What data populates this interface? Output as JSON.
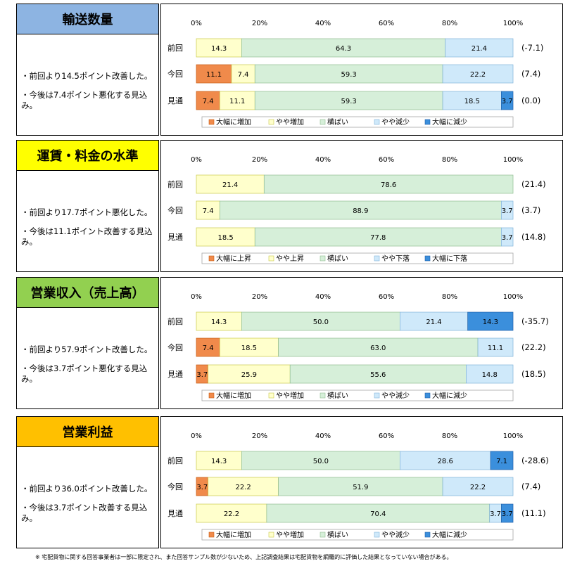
{
  "colors": {
    "大幅増": "#f08a4b",
    "やや増": "#ffffcc",
    "横ばい": "#d6efd9",
    "やや減": "#cfe9fa",
    "大幅減": "#3b8fdc"
  },
  "panels": [
    {
      "title": "輸送数量",
      "title_bg": "#8db4e2",
      "notes": [
        "・前回より14.5ポイント改善した。",
        "・今後は7.4ポイント悪化する見込み。"
      ],
      "legend": [
        "大幅に増加",
        "やや増加",
        "横ばい",
        "やや減少",
        "大幅に減少"
      ]
    },
    {
      "title": "運賃・料金の水準",
      "title_bg": "#ffff00",
      "notes": [
        "・前回より17.7ポイント悪化した。",
        "・今後は11.1ポイント改善する見込み。"
      ],
      "legend": [
        "大幅に上昇",
        "やや上昇",
        "横ばい",
        "やや下落",
        "大幅に下落"
      ]
    },
    {
      "title": "営業収入（売上高）",
      "title_bg": "#92d050",
      "notes": [
        "・前回より57.9ポイント改善した。",
        "・今後は3.7ポイント悪化する見込み。"
      ],
      "legend": [
        "大幅に増加",
        "やや増加",
        "横ばい",
        "やや減少",
        "大幅に減少"
      ]
    },
    {
      "title": "営業利益",
      "title_bg": "#ffc000",
      "notes": [
        "・前回より36.0ポイント改善した。",
        "・今後は3.7ポイント改善する見込み。"
      ],
      "legend": [
        "大幅に増加",
        "やや増加",
        "横ばい",
        "やや減少",
        "大幅に減少"
      ]
    }
  ],
  "chart_data": [
    {
      "type": "bar",
      "stacked": true,
      "orientation": "horizontal",
      "categories": [
        "前回",
        "今回",
        "見通"
      ],
      "x_ticks": [
        "0%",
        "20%",
        "40%",
        "60%",
        "80%",
        "100%"
      ],
      "xlim": [
        0,
        100
      ],
      "series": [
        {
          "name": "大幅に増加",
          "values": [
            0,
            11.1,
            7.4
          ]
        },
        {
          "name": "やや増加",
          "values": [
            14.3,
            7.4,
            11.1
          ]
        },
        {
          "name": "横ばい",
          "values": [
            64.3,
            59.3,
            59.3
          ]
        },
        {
          "name": "やや減少",
          "values": [
            21.4,
            22.2,
            18.5
          ]
        },
        {
          "name": "大幅に減少",
          "values": [
            0,
            0,
            3.7
          ]
        }
      ],
      "annotations": [
        "(-7.1)",
        "(7.4)",
        "(0.0)"
      ]
    },
    {
      "type": "bar",
      "stacked": true,
      "orientation": "horizontal",
      "categories": [
        "前回",
        "今回",
        "見通"
      ],
      "x_ticks": [
        "0%",
        "20%",
        "40%",
        "60%",
        "80%",
        "100%"
      ],
      "xlim": [
        0,
        100
      ],
      "series": [
        {
          "name": "大幅に上昇",
          "values": [
            0,
            0,
            0
          ]
        },
        {
          "name": "やや上昇",
          "values": [
            21.4,
            7.4,
            18.5
          ]
        },
        {
          "name": "横ばい",
          "values": [
            78.6,
            88.9,
            77.8
          ]
        },
        {
          "name": "やや下落",
          "values": [
            0,
            3.7,
            3.7
          ]
        },
        {
          "name": "大幅に下落",
          "values": [
            0,
            0,
            0
          ]
        }
      ],
      "annotations": [
        "(21.4)",
        "(3.7)",
        "(14.8)"
      ]
    },
    {
      "type": "bar",
      "stacked": true,
      "orientation": "horizontal",
      "categories": [
        "前回",
        "今回",
        "見通"
      ],
      "x_ticks": [
        "0%",
        "20%",
        "40%",
        "60%",
        "80%",
        "100%"
      ],
      "xlim": [
        0,
        100
      ],
      "series": [
        {
          "name": "大幅に増加",
          "values": [
            0,
            7.4,
            3.7
          ]
        },
        {
          "name": "やや増加",
          "values": [
            14.3,
            18.5,
            25.9
          ]
        },
        {
          "name": "横ばい",
          "values": [
            50.0,
            63.0,
            55.6
          ]
        },
        {
          "name": "やや減少",
          "values": [
            21.4,
            11.1,
            14.8
          ]
        },
        {
          "name": "大幅に減少",
          "values": [
            14.3,
            0,
            0
          ]
        }
      ],
      "annotations": [
        "(-35.7)",
        "(22.2)",
        "(18.5)"
      ]
    },
    {
      "type": "bar",
      "stacked": true,
      "orientation": "horizontal",
      "categories": [
        "前回",
        "今回",
        "見通"
      ],
      "x_ticks": [
        "0%",
        "20%",
        "40%",
        "60%",
        "80%",
        "100%"
      ],
      "xlim": [
        0,
        100
      ],
      "series": [
        {
          "name": "大幅に増加",
          "values": [
            0,
            3.7,
            0
          ]
        },
        {
          "name": "やや増加",
          "values": [
            14.3,
            22.2,
            22.2
          ]
        },
        {
          "name": "横ばい",
          "values": [
            50.0,
            51.9,
            70.4
          ]
        },
        {
          "name": "やや減少",
          "values": [
            28.6,
            22.2,
            3.7
          ]
        },
        {
          "name": "大幅に減少",
          "values": [
            7.1,
            0,
            3.7
          ]
        }
      ],
      "annotations": [
        "(-28.6)",
        "(7.4)",
        "(11.1)"
      ]
    }
  ],
  "footnote": "※ 宅配貨物に関する回答事業者は一部に限定され、また回答サンプル数が少ないため、上記調査結果は宅配貨物を網羅的に評価した結果となっていない場合がある。"
}
